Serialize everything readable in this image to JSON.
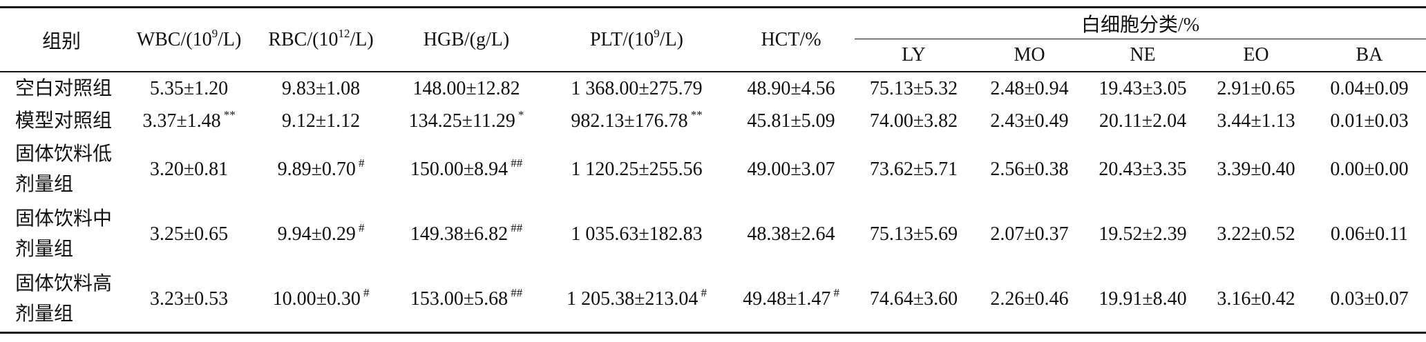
{
  "table": {
    "header": {
      "group": "组别",
      "columns": [
        {
          "pre": "WBC/(10",
          "sup": "9",
          "post": "/L)"
        },
        {
          "pre": "RBC/(10",
          "sup": "12",
          "post": "/L)"
        },
        {
          "text": "HGB/(g/L)"
        },
        {
          "pre": "PLT/(10",
          "sup": "9",
          "post": "/L)"
        },
        {
          "text": "HCT/%"
        }
      ],
      "wbc_group": "白细胞分类/%",
      "wbc_columns": [
        "LY",
        "MO",
        "NE",
        "EO",
        "BA"
      ]
    },
    "rows": [
      {
        "group": "空白对照组",
        "cells": [
          "5.35±1.20",
          "9.83±1.08",
          "148.00±12.82",
          "1 368.00±275.79",
          "48.90±4.56",
          "75.13±5.32",
          "2.48±0.94",
          "19.43±3.05",
          "2.91±0.65",
          "0.04±0.09"
        ]
      },
      {
        "group": "模型对照组",
        "cells": [
          {
            "value": "3.37±1.48",
            "mark": "**"
          },
          "9.12±1.12",
          {
            "value": "134.25±11.29",
            "mark": "*"
          },
          {
            "value": "982.13±176.78",
            "mark": "**"
          },
          "45.81±5.09",
          "74.00±3.82",
          "2.43±0.49",
          "20.11±2.04",
          "3.44±1.13",
          "0.01±0.03"
        ]
      },
      {
        "group": "固体饮料低剂量组",
        "cells": [
          "3.20±0.81",
          {
            "value": "9.89±0.70",
            "mark": "#"
          },
          {
            "value": "150.00±8.94",
            "mark": "##"
          },
          "1 120.25±255.56",
          "49.00±3.07",
          "73.62±5.71",
          "2.56±0.38",
          "20.43±3.35",
          "3.39±0.40",
          "0.00±0.00"
        ]
      },
      {
        "group": "固体饮料中剂量组",
        "cells": [
          "3.25±0.65",
          {
            "value": "9.94±0.29",
            "mark": "#"
          },
          {
            "value": "149.38±6.82",
            "mark": "##"
          },
          "1 035.63±182.83",
          "48.38±2.64",
          "75.13±5.69",
          "2.07±0.37",
          "19.52±2.39",
          "3.22±0.52",
          "0.06±0.11"
        ]
      },
      {
        "group": "固体饮料高剂量组",
        "cells": [
          "3.23±0.53",
          {
            "value": "10.00±0.30",
            "mark": "#"
          },
          {
            "value": "153.00±5.68",
            "mark": "##"
          },
          {
            "value": "1 205.38±213.04",
            "mark": "#"
          },
          {
            "value": "49.48±1.47",
            "mark": "#"
          },
          "74.64±3.60",
          "2.26±0.46",
          "19.91±8.40",
          "3.16±0.42",
          "0.03±0.07"
        ]
      }
    ]
  }
}
